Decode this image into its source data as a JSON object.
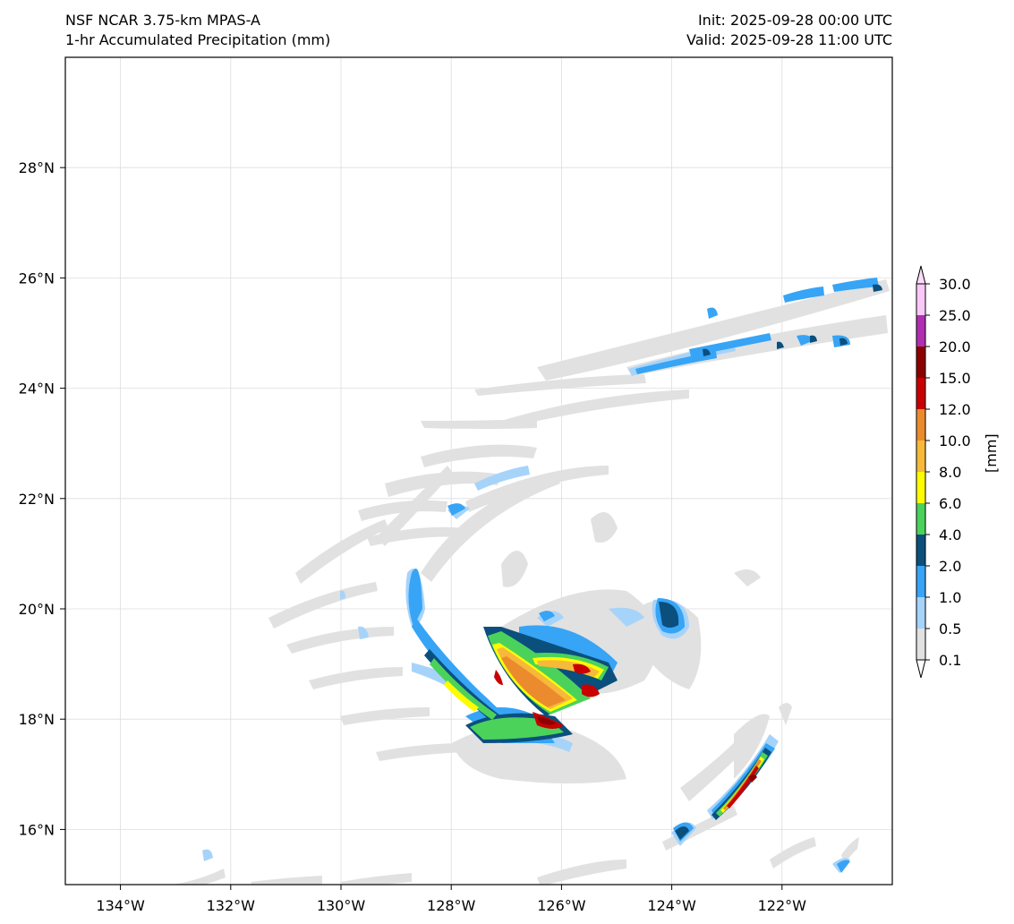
{
  "header": {
    "model_title": "NSF NCAR 3.75-km MPAS-A",
    "field_title": "1-hr Accumulated Precipitation (mm)",
    "init": "Init: 2025-09-28 00:00 UTC",
    "valid": "Valid: 2025-09-28 11:00 UTC"
  },
  "map": {
    "lon_range": [
      -135,
      -120
    ],
    "lat_range": [
      15,
      30
    ],
    "lon_ticks": [
      "134°W",
      "132°W",
      "130°W",
      "128°W",
      "126°W",
      "124°W",
      "122°W"
    ],
    "lat_ticks": [
      "16°N",
      "18°N",
      "20°N",
      "22°N",
      "24°N",
      "26°N",
      "28°N"
    ],
    "gridlines": true,
    "features": [
      "spiral precipitation bands around a tropical cyclone centered near 18.5°N 126°W",
      "heaviest rainfall (>15 mm) in curved bands southwest of the center",
      "outer rainband arc extending northeast to 25-26°N",
      "isolated heavy cells near 16-17°N 122-123°W"
    ]
  },
  "colorbar": {
    "unit_label": "[mm]",
    "levels": [
      "0.1",
      "0.5",
      "1.0",
      "2.0",
      "4.0",
      "6.0",
      "8.0",
      "10.0",
      "12.0",
      "15.0",
      "20.0",
      "25.0",
      "30.0"
    ],
    "colors": [
      "#e1e1e1",
      "#a6d3fa",
      "#37a4f6",
      "#0b4f7d",
      "#4bd25b",
      "#fffb00",
      "#f6b93a",
      "#ec8b2d",
      "#c80000",
      "#8c0000",
      "#b02fb1",
      "#f9c8f8"
    ]
  }
}
